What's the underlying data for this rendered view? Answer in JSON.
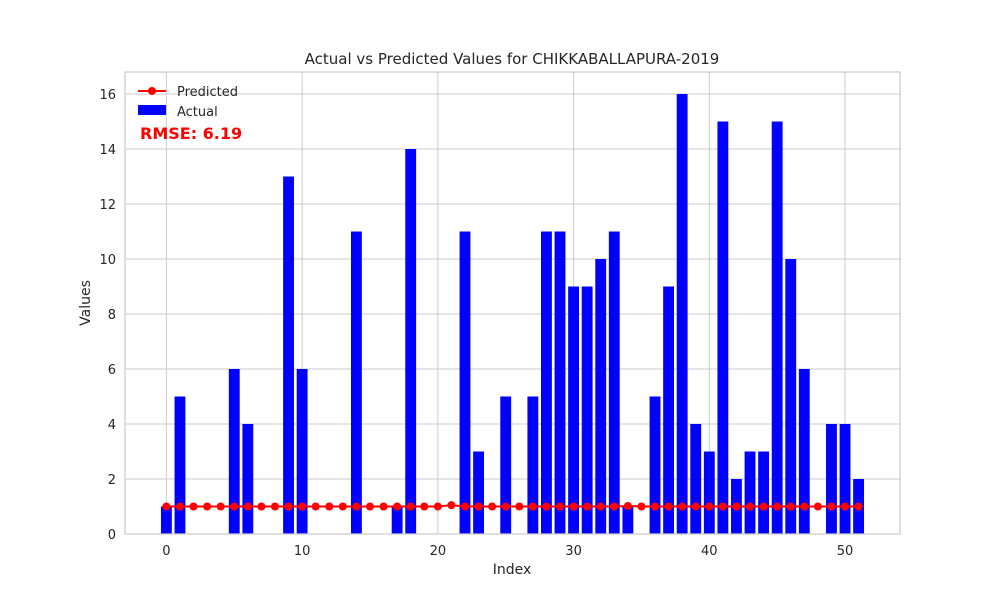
{
  "chart_data": {
    "type": "bar",
    "title": "Actual vs Predicted Values for CHIKKABALLAPURA-2019",
    "xlabel": "Index",
    "ylabel": "Values",
    "xlim": [
      -3.05,
      54.05
    ],
    "ylim": [
      0,
      16.8
    ],
    "xticks": [
      0,
      10,
      20,
      30,
      40,
      50
    ],
    "yticks": [
      0,
      2,
      4,
      6,
      8,
      10,
      12,
      14,
      16
    ],
    "grid": true,
    "legend_position": "top-left",
    "annotation": {
      "text": "RMSE: 6.19",
      "color": "#ff0000"
    },
    "x": [
      0,
      1,
      2,
      3,
      4,
      5,
      6,
      7,
      8,
      9,
      10,
      11,
      12,
      13,
      14,
      15,
      16,
      17,
      18,
      19,
      20,
      21,
      22,
      23,
      24,
      25,
      26,
      27,
      28,
      29,
      30,
      31,
      32,
      33,
      34,
      35,
      36,
      37,
      38,
      39,
      40,
      41,
      42,
      43,
      44,
      45,
      46,
      47,
      48,
      49,
      50,
      51
    ],
    "series": [
      {
        "name": "Actual",
        "kind": "bar",
        "color": "#0000ff",
        "values": [
          1,
          5,
          0,
          0,
          0,
          6,
          4,
          0,
          0,
          13,
          6,
          0,
          0,
          0,
          11,
          0,
          0,
          1,
          14,
          0,
          0,
          0,
          11,
          3,
          0,
          5,
          0,
          5,
          11,
          11,
          9,
          9,
          10,
          11,
          1,
          0,
          5,
          9,
          16,
          4,
          3,
          15,
          2,
          3,
          3,
          15,
          10,
          6,
          0,
          4,
          4,
          2
        ]
      },
      {
        "name": "Predicted",
        "kind": "line",
        "color": "#ff0000",
        "values": [
          1,
          1,
          1,
          1,
          1,
          1,
          1,
          1,
          1,
          1,
          1,
          1,
          1,
          1,
          1,
          1,
          1,
          1,
          1,
          1,
          1,
          1.05,
          1,
          1,
          1,
          1,
          1,
          1,
          1,
          1,
          1,
          1,
          1,
          1,
          1.02,
          1,
          1,
          1,
          1,
          1,
          1,
          1,
          1,
          1,
          1,
          1,
          1,
          1,
          1,
          1,
          1,
          1
        ]
      }
    ]
  }
}
